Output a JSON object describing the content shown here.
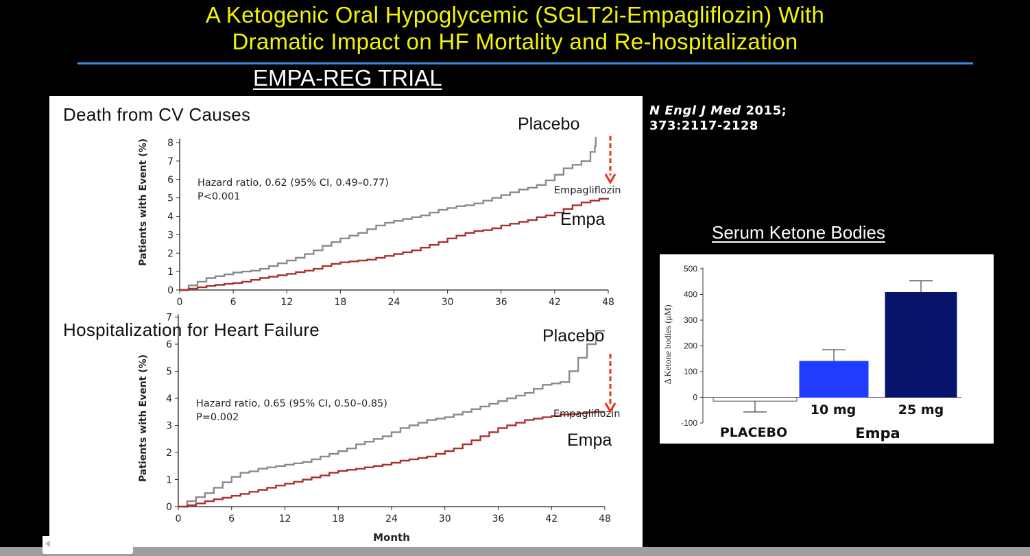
{
  "slide": {
    "title_line1": "A Ketogenic Oral Hypoglycemic (SGLT2i-Empagliflozin) With",
    "title_line2": "Dramatic Impact on HF Mortality and Re-hospitalization",
    "subtitle": "EMPA-REG TRIAL",
    "citation_journal": "N Engl J Med",
    "citation_year": " 2015;",
    "citation_pages": "373:2117-2128",
    "ketone_title": "Serum Ketone Bodies"
  },
  "colors": {
    "title": "#f4f400",
    "rule": "#3d8fe6",
    "placebo_line": "#8a8a8a",
    "empa_line": "#a8322a",
    "arrow": "#e8321e",
    "bar_10mg": "#1f3cff",
    "bar_25mg": "#08146b"
  },
  "chart_data": [
    {
      "type": "line",
      "title": "Death from CV Causes",
      "xlabel": "",
      "ylabel": "Patients with Event (%)",
      "xlim": [
        0,
        48
      ],
      "ylim": [
        0,
        8.5
      ],
      "xticks": [
        "0",
        "6",
        "12",
        "18",
        "24",
        "30",
        "36",
        "42",
        "48"
      ],
      "yticks": [
        "0",
        "1",
        "2",
        "3",
        "4",
        "5",
        "6",
        "7",
        "8"
      ],
      "annotation_line1": "Hazard ratio, 0.62 (95% CI, 0.49–0.77)",
      "annotation_line2": "P<0.001",
      "placebo_label": "Placebo",
      "series_label": "Empagliflozin",
      "empa_label": "Empa",
      "series": [
        {
          "name": "Placebo",
          "x": [
            0,
            1,
            2,
            3,
            4,
            5,
            6,
            7,
            8,
            9,
            10,
            11,
            12,
            13,
            14,
            15,
            16,
            17,
            18,
            19,
            20,
            21,
            22,
            23,
            24,
            25,
            26,
            27,
            28,
            29,
            30,
            31,
            32,
            33,
            34,
            35,
            36,
            37,
            38,
            39,
            40,
            41,
            42,
            43,
            44,
            45,
            46,
            46.5,
            46.6
          ],
          "y": [
            0,
            0.25,
            0.45,
            0.65,
            0.75,
            0.85,
            0.95,
            1.0,
            1.05,
            1.15,
            1.3,
            1.45,
            1.6,
            1.75,
            1.95,
            2.15,
            2.4,
            2.6,
            2.8,
            2.95,
            3.1,
            3.3,
            3.5,
            3.65,
            3.75,
            3.85,
            3.95,
            4.05,
            4.2,
            4.35,
            4.45,
            4.55,
            4.6,
            4.7,
            4.85,
            5.0,
            5.15,
            5.3,
            5.45,
            5.55,
            5.7,
            5.95,
            6.25,
            6.6,
            6.8,
            7.0,
            7.5,
            7.8,
            8.3
          ]
        },
        {
          "name": "Empagliflozin",
          "x": [
            0,
            1,
            2,
            3,
            4,
            5,
            6,
            7,
            8,
            9,
            10,
            11,
            12,
            13,
            14,
            15,
            16,
            17,
            18,
            19,
            20,
            21,
            22,
            23,
            24,
            25,
            26,
            27,
            28,
            29,
            30,
            31,
            32,
            33,
            34,
            35,
            36,
            37,
            38,
            39,
            40,
            41,
            42,
            43,
            44,
            45,
            46,
            47,
            48
          ],
          "y": [
            0,
            0.08,
            0.15,
            0.22,
            0.28,
            0.33,
            0.38,
            0.45,
            0.55,
            0.65,
            0.72,
            0.8,
            0.88,
            0.97,
            1.05,
            1.15,
            1.3,
            1.42,
            1.5,
            1.55,
            1.6,
            1.65,
            1.75,
            1.85,
            1.95,
            2.05,
            2.15,
            2.3,
            2.45,
            2.6,
            2.8,
            2.95,
            3.1,
            3.2,
            3.25,
            3.35,
            3.5,
            3.6,
            3.7,
            3.8,
            3.95,
            4.05,
            4.2,
            4.4,
            4.6,
            4.75,
            4.85,
            4.95,
            5.0
          ]
        }
      ]
    },
    {
      "type": "line",
      "title": "Hospitalization for Heart Failure",
      "xlabel": "Month",
      "ylabel": "Patients with Event (%)",
      "xlim": [
        0,
        48
      ],
      "ylim": [
        0,
        7
      ],
      "xticks": [
        "0",
        "6",
        "12",
        "18",
        "24",
        "30",
        "36",
        "42",
        "48"
      ],
      "yticks": [
        "0",
        "1",
        "2",
        "3",
        "4",
        "5",
        "6",
        "7"
      ],
      "annotation_line1": "Hazard ratio, 0.65 (95% CI, 0.50–0.85)",
      "annotation_line2": "P=0.002",
      "placebo_label": "Placebo",
      "series_label": "Empagliflozin",
      "empa_label": "Empa",
      "series": [
        {
          "name": "Placebo",
          "x": [
            0,
            1,
            2,
            3,
            4,
            5,
            6,
            7,
            8,
            9,
            10,
            11,
            12,
            13,
            14,
            15,
            16,
            17,
            18,
            19,
            20,
            21,
            22,
            23,
            24,
            25,
            26,
            27,
            28,
            29,
            30,
            31,
            32,
            33,
            34,
            35,
            36,
            37,
            38,
            39,
            40,
            41,
            42,
            43,
            44,
            45,
            46,
            47,
            48
          ],
          "y": [
            0,
            0.2,
            0.35,
            0.5,
            0.7,
            0.9,
            1.1,
            1.25,
            1.3,
            1.4,
            1.45,
            1.5,
            1.55,
            1.6,
            1.65,
            1.75,
            1.85,
            1.95,
            2.05,
            2.15,
            2.3,
            2.4,
            2.5,
            2.6,
            2.75,
            2.9,
            3.0,
            3.1,
            3.2,
            3.25,
            3.3,
            3.4,
            3.5,
            3.6,
            3.7,
            3.8,
            3.9,
            4.0,
            4.1,
            4.2,
            4.35,
            4.5,
            4.55,
            4.6,
            5.0,
            5.5,
            6.0,
            6.5,
            6.5
          ]
        },
        {
          "name": "Empagliflozin",
          "x": [
            0,
            1,
            2,
            3,
            4,
            5,
            6,
            7,
            8,
            9,
            10,
            11,
            12,
            13,
            14,
            15,
            16,
            17,
            18,
            19,
            20,
            21,
            22,
            23,
            24,
            25,
            26,
            27,
            28,
            29,
            30,
            31,
            32,
            33,
            34,
            35,
            36,
            37,
            38,
            39,
            40,
            41,
            42,
            43,
            44,
            45,
            46,
            47,
            48
          ],
          "y": [
            0,
            0.05,
            0.12,
            0.2,
            0.27,
            0.33,
            0.4,
            0.47,
            0.55,
            0.62,
            0.7,
            0.78,
            0.85,
            0.92,
            1.0,
            1.08,
            1.15,
            1.25,
            1.32,
            1.36,
            1.4,
            1.45,
            1.5,
            1.55,
            1.62,
            1.7,
            1.75,
            1.8,
            1.85,
            1.95,
            2.05,
            2.15,
            2.3,
            2.45,
            2.6,
            2.75,
            2.9,
            3.0,
            3.1,
            3.2,
            3.25,
            3.3,
            3.35,
            3.4,
            3.42,
            3.45,
            3.48,
            3.5,
            3.5
          ]
        }
      ]
    },
    {
      "type": "bar",
      "title": "Serum Ketone Bodies",
      "ylabel": "Δ Ketone bodies (μM)",
      "ylim": [
        -100,
        500
      ],
      "yticks": [
        "-100",
        "0",
        "100",
        "200",
        "300",
        "400",
        "500"
      ],
      "categories": [
        "PLACEBO",
        "10 mg",
        "25 mg"
      ],
      "values": [
        -15,
        140,
        408
      ],
      "errors": [
        42,
        45,
        45
      ],
      "group_label": "Empa"
    }
  ]
}
